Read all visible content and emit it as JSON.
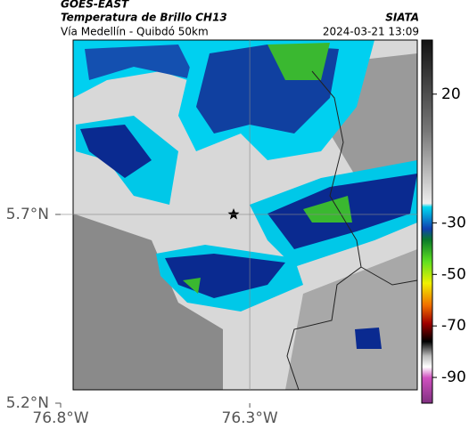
{
  "header": {
    "title": "GOES-EAST",
    "subtitle": "Temperatura de Brillo CH13",
    "location": "Vía Medellín - Quibdó 50km",
    "source": "SIATA",
    "timestamp": "2024-03-21 13:09"
  },
  "map": {
    "xlim": [
      -76.8,
      -75.857
    ],
    "ylim": [
      5.2,
      6.162
    ],
    "xticks": [
      {
        "value": -76.8,
        "label": "76.8°W"
      },
      {
        "value": -76.3,
        "label": "76.3°W"
      }
    ],
    "yticks": [
      {
        "value": 5.2,
        "label": "5.2°N"
      },
      {
        "value": 5.7,
        "label": "5.7°N"
      }
    ],
    "grid": true
  },
  "colorbar": {
    "lim": [
      -100,
      41
    ],
    "ticks": [
      20,
      -30,
      -50,
      -70,
      -90
    ]
  }
}
